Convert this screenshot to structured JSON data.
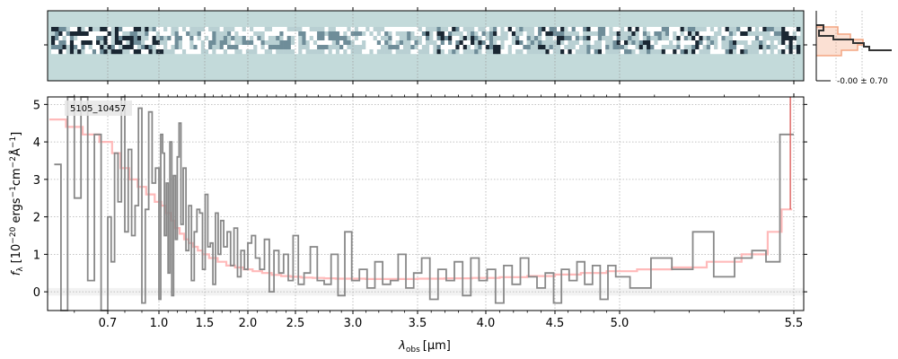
{
  "chart_data": [
    {
      "type": "heatmap",
      "panel": "2d-spectrum",
      "background_color": "#c3dada",
      "trace_colormap": [
        "#ffffff",
        "#b9d0d3",
        "#6f8d99",
        "#1a2733"
      ],
      "x_range_um": [
        0.52,
        5.53
      ],
      "x_ticks_um": [
        0.7,
        1.0,
        1.5,
        2.0,
        2.5,
        3.0,
        3.5,
        4.0,
        4.5,
        5.0,
        5.5
      ],
      "grid": true
    },
    {
      "type": "line",
      "panel": "1d-spectrum",
      "title": "",
      "label_box": "5105_10457",
      "xlabel_symbol": "λ",
      "xlabel_subscript": "obs",
      "xlabel_unit": "[μm]",
      "ylabel_symbol": "f",
      "ylabel_subscript": "λ",
      "ylabel_unit": "[10",
      "ylabel_exp1": "−20",
      "ylabel_mid": " ergs",
      "ylabel_exp2": "−1",
      "ylabel_mid2": "cm",
      "ylabel_exp3": "−2",
      "ylabel_mid3": "Å",
      "ylabel_exp4": "−1",
      "ylabel_end": "]",
      "x_scale": "nonlinear (approx. sqrt-like spectral sampling)",
      "x_ticks": [
        0.7,
        1.0,
        1.5,
        2.0,
        2.5,
        3.0,
        3.5,
        4.0,
        4.5,
        5.0,
        5.5
      ],
      "x_tick_labels": [
        "0.7",
        "1.0",
        "1.5",
        "2.0",
        "2.5",
        "3.0",
        "3.5",
        "4.0",
        "4.5",
        "5.0",
        "5.5"
      ],
      "y_ticks": [
        0,
        1,
        2,
        3,
        4,
        5
      ],
      "y_tick_labels": [
        "0",
        "1",
        "2",
        "3",
        "4",
        "5"
      ],
      "ylim": [
        -0.5,
        5.2
      ],
      "grid": true,
      "series": [
        {
          "role": "data",
          "style": "steps",
          "color": "#888888",
          "x": [
            0.55,
            0.57,
            0.59,
            0.61,
            0.63,
            0.65,
            0.67,
            0.69,
            0.71,
            0.73,
            0.75,
            0.77,
            0.79,
            0.81,
            0.83,
            0.85,
            0.87,
            0.89,
            0.91,
            0.93,
            0.95,
            0.97,
            0.99,
            1.01,
            1.03,
            1.05,
            1.07,
            1.09,
            1.11,
            1.13,
            1.15,
            1.17,
            1.19,
            1.21,
            1.23,
            1.25,
            1.28,
            1.31,
            1.34,
            1.37,
            1.4,
            1.43,
            1.46,
            1.49,
            1.52,
            1.55,
            1.58,
            1.61,
            1.64,
            1.67,
            1.7,
            1.74,
            1.78,
            1.82,
            1.86,
            1.9,
            1.94,
            1.98,
            2.02,
            2.06,
            2.1,
            2.15,
            2.2,
            2.25,
            2.3,
            2.35,
            2.4,
            2.45,
            2.5,
            2.55,
            2.6,
            2.66,
            2.72,
            2.78,
            2.84,
            2.9,
            2.96,
            3.02,
            3.08,
            3.14,
            3.2,
            3.26,
            3.32,
            3.38,
            3.44,
            3.5,
            3.56,
            3.62,
            3.68,
            3.74,
            3.8,
            3.86,
            3.92,
            3.98,
            4.04,
            4.1,
            4.16,
            4.22,
            4.28,
            4.34,
            4.4,
            4.46,
            4.52,
            4.58,
            4.64,
            4.7,
            4.76,
            4.82,
            4.88,
            4.94,
            5.0,
            5.06,
            5.12,
            5.18,
            5.24,
            5.3,
            5.36,
            5.4,
            5.44,
            5.48
          ],
          "y": [
            3.4,
            -0.5,
            5.2,
            2.5,
            5.2,
            0.3,
            4.2,
            -0.5,
            2.0,
            0.8,
            3.7,
            2.4,
            5.2,
            1.6,
            3.8,
            1.5,
            2.3,
            4.9,
            -0.3,
            2.2,
            4.8,
            2.9,
            3.3,
            -0.2,
            4.2,
            3.7,
            1.5,
            2.9,
            0.5,
            4.0,
            -0.1,
            3.1,
            1.4,
            3.6,
            4.5,
            1.8,
            3.3,
            1.1,
            2.3,
            0.3,
            1.6,
            2.2,
            2.1,
            0.6,
            2.6,
            1.2,
            1.3,
            0.2,
            2.1,
            1.0,
            1.9,
            1.2,
            1.6,
            0.7,
            1.7,
            0.4,
            1.1,
            0.6,
            1.3,
            1.5,
            0.9,
            0.6,
            1.4,
            0.0,
            1.1,
            0.5,
            1.0,
            0.3,
            1.5,
            0.2,
            0.5,
            1.2,
            0.3,
            0.2,
            1.0,
            -0.1,
            1.6,
            0.3,
            0.6,
            0.1,
            0.8,
            0.2,
            0.3,
            1.0,
            0.1,
            0.5,
            0.9,
            -0.2,
            0.6,
            0.3,
            0.8,
            -0.1,
            0.9,
            0.3,
            0.6,
            -0.3,
            0.7,
            0.2,
            0.9,
            0.4,
            0.1,
            0.5,
            -0.3,
            0.6,
            0.3,
            0.8,
            0.2,
            0.7,
            -0.2,
            0.7,
            0.4,
            0.1,
            0.9,
            0.6,
            1.6,
            0.4,
            0.9,
            1.1,
            0.8,
            4.2
          ]
        },
        {
          "role": "model",
          "style": "steps",
          "color": "#ffb3b3",
          "x": [
            0.55,
            0.6,
            0.65,
            0.7,
            0.75,
            0.8,
            0.85,
            0.9,
            0.95,
            1.0,
            1.05,
            1.1,
            1.15,
            1.2,
            1.25,
            1.3,
            1.35,
            1.4,
            1.45,
            1.5,
            1.6,
            1.7,
            1.8,
            1.9,
            2.0,
            2.1,
            2.2,
            2.3,
            2.4,
            2.5,
            2.6,
            2.7,
            2.8,
            2.9,
            3.0,
            3.2,
            3.4,
            3.6,
            3.8,
            4.0,
            4.2,
            4.4,
            4.6,
            4.8,
            5.0,
            5.1,
            5.2,
            5.3,
            5.4,
            5.45,
            5.48
          ],
          "y": [
            4.6,
            4.4,
            4.2,
            4.0,
            3.7,
            3.3,
            3.0,
            2.8,
            2.6,
            2.4,
            2.3,
            2.1,
            1.9,
            1.7,
            1.55,
            1.4,
            1.3,
            1.2,
            1.1,
            1.0,
            0.9,
            0.8,
            0.7,
            0.65,
            0.6,
            0.55,
            0.5,
            0.45,
            0.42,
            0.4,
            0.38,
            0.37,
            0.36,
            0.35,
            0.35,
            0.34,
            0.34,
            0.35,
            0.36,
            0.37,
            0.39,
            0.42,
            0.46,
            0.5,
            0.55,
            0.6,
            0.65,
            0.8,
            1.0,
            1.6,
            2.2
          ]
        }
      ]
    },
    {
      "type": "line",
      "panel": "profile",
      "annotation": "-0.00 ± 0.70",
      "model_color": "#f4a582",
      "data_color": "#333333"
    }
  ]
}
